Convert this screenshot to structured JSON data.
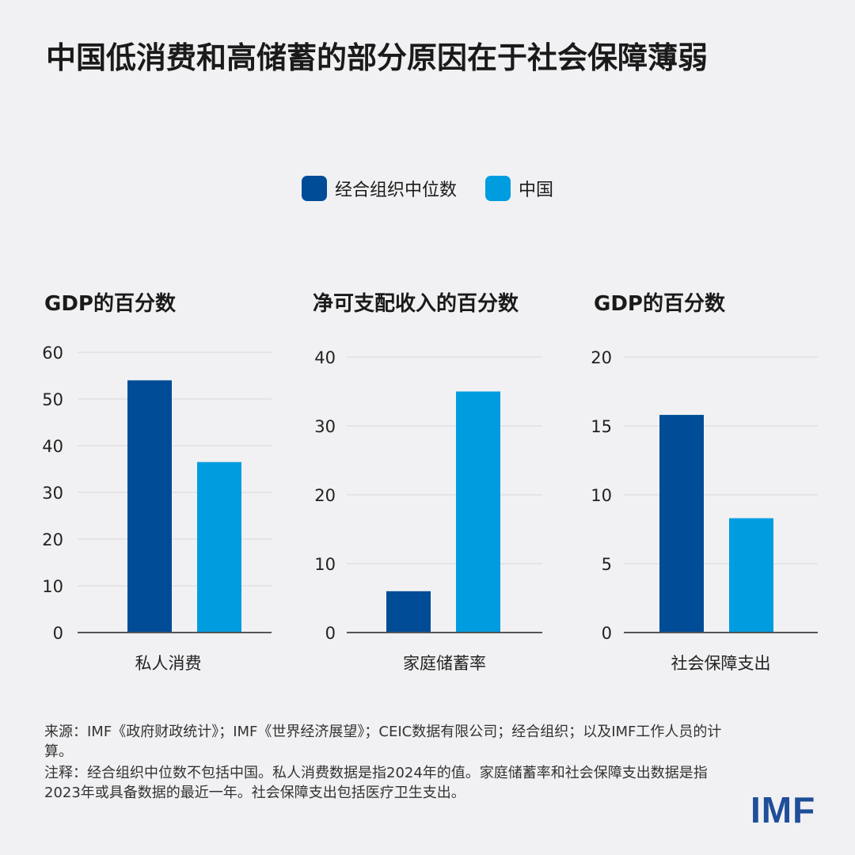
{
  "title": "中国低消费和高储蓄的部分原因在于社会保障薄弱",
  "colors": {
    "oecd": "#004c97",
    "china": "#009ce0",
    "axis": "#555555",
    "grid": "#d8d8dc"
  },
  "legend": {
    "oecd_label": "经合组织中位数",
    "china_label": "中国"
  },
  "chart_data": [
    {
      "type": "bar",
      "title": "GDP的百分数",
      "categories": [
        "私人消费"
      ],
      "series": [
        {
          "name": "经合组织中位数",
          "values": [
            54
          ]
        },
        {
          "name": "中国",
          "values": [
            36.5
          ]
        }
      ],
      "ylim": [
        0,
        60
      ],
      "yticks": [
        0,
        10,
        20,
        30,
        40,
        50,
        60
      ]
    },
    {
      "type": "bar",
      "title": "净可支配收入的百分数",
      "categories": [
        "家庭储蓄率"
      ],
      "series": [
        {
          "name": "经合组织中位数",
          "values": [
            6
          ]
        },
        {
          "name": "中国",
          "values": [
            35
          ]
        }
      ],
      "ylim": [
        0,
        40
      ],
      "yticks": [
        0,
        10,
        20,
        30,
        40
      ]
    },
    {
      "type": "bar",
      "title": "GDP的百分数",
      "categories": [
        "社会保障支出"
      ],
      "series": [
        {
          "name": "经合组织中位数",
          "values": [
            15.8
          ]
        },
        {
          "name": "中国",
          "values": [
            8.3
          ]
        }
      ],
      "ylim": [
        0,
        20
      ],
      "yticks": [
        0,
        5,
        10,
        15,
        20
      ]
    }
  ],
  "footer": {
    "source": "来源：IMF《政府财政统计》；IMF《世界经济展望》；CEIC数据有限公司；经合组织；以及IMF工作人员的计算。",
    "note": "注释：经合组织中位数不包括中国。私人消费数据是指2024年的值。家庭储蓄率和社会保障支出数据是指2023年或具备数据的最近一年。社会保障支出包括医疗卫生支出。"
  },
  "logo": "IMF"
}
